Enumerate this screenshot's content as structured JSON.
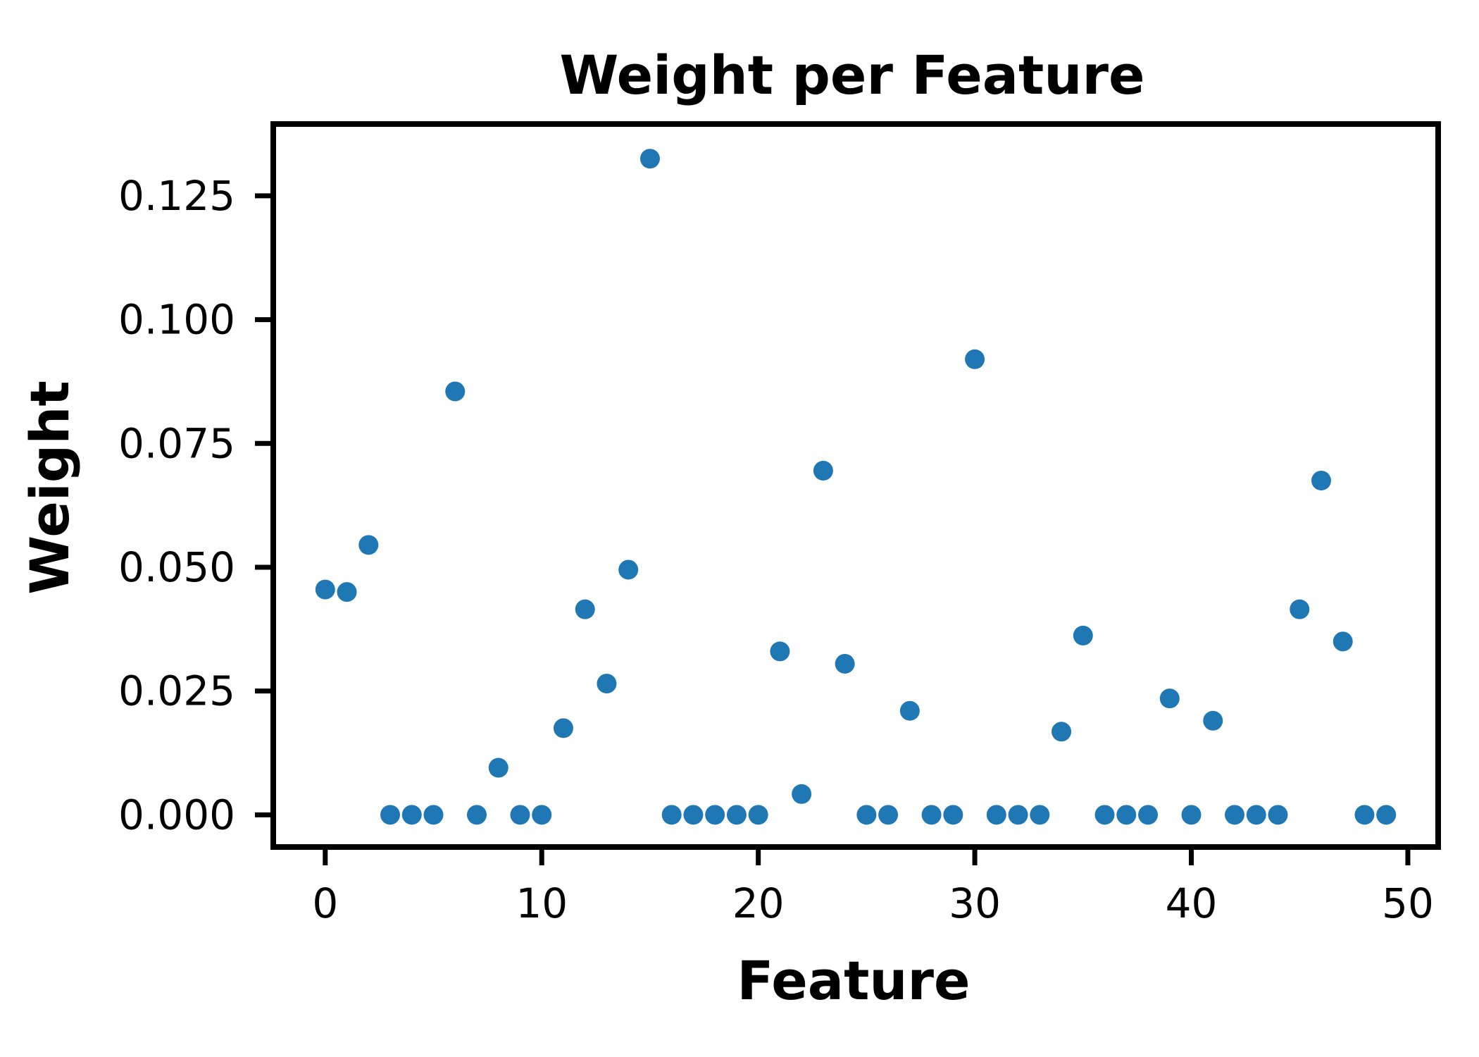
{
  "chart_data": {
    "type": "scatter",
    "title": "Weight per Feature",
    "xlabel": "Feature",
    "ylabel": "Weight",
    "xlim": [
      -2.4,
      51.4
    ],
    "ylim": [
      -0.0065,
      0.1395
    ],
    "xticks": [
      0,
      10,
      20,
      30,
      40,
      50
    ],
    "xtick_labels": [
      "0",
      "10",
      "20",
      "30",
      "40",
      "50"
    ],
    "yticks": [
      0.0,
      0.025,
      0.05,
      0.075,
      0.1,
      0.125
    ],
    "ytick_labels": [
      "0.000",
      "0.025",
      "0.050",
      "0.075",
      "0.100",
      "0.125"
    ],
    "grid": false,
    "marker_color": "#1f77b4",
    "x": [
      0,
      1,
      2,
      3,
      4,
      5,
      6,
      7,
      8,
      9,
      10,
      11,
      12,
      13,
      14,
      15,
      16,
      17,
      18,
      19,
      20,
      21,
      22,
      23,
      24,
      25,
      26,
      27,
      28,
      29,
      30,
      31,
      32,
      33,
      34,
      35,
      36,
      37,
      38,
      39,
      40,
      41,
      42,
      43,
      44,
      45,
      46,
      47,
      48,
      49
    ],
    "y": [
      0.0455,
      0.045,
      0.0545,
      0,
      0,
      0,
      0.0855,
      0,
      0.0095,
      0,
      0,
      0.0175,
      0.0415,
      0.0265,
      0.0495,
      0.1325,
      0,
      0,
      0,
      0,
      0,
      0.033,
      0.0042,
      0.0695,
      0.0305,
      0,
      0,
      0.021,
      0,
      0,
      0.092,
      0,
      0,
      0,
      0.0168,
      0.0362,
      0,
      0,
      0,
      0.0235,
      0,
      0.019,
      0,
      0,
      0,
      0.0415,
      0.0675,
      0.035,
      0,
      0
    ]
  }
}
